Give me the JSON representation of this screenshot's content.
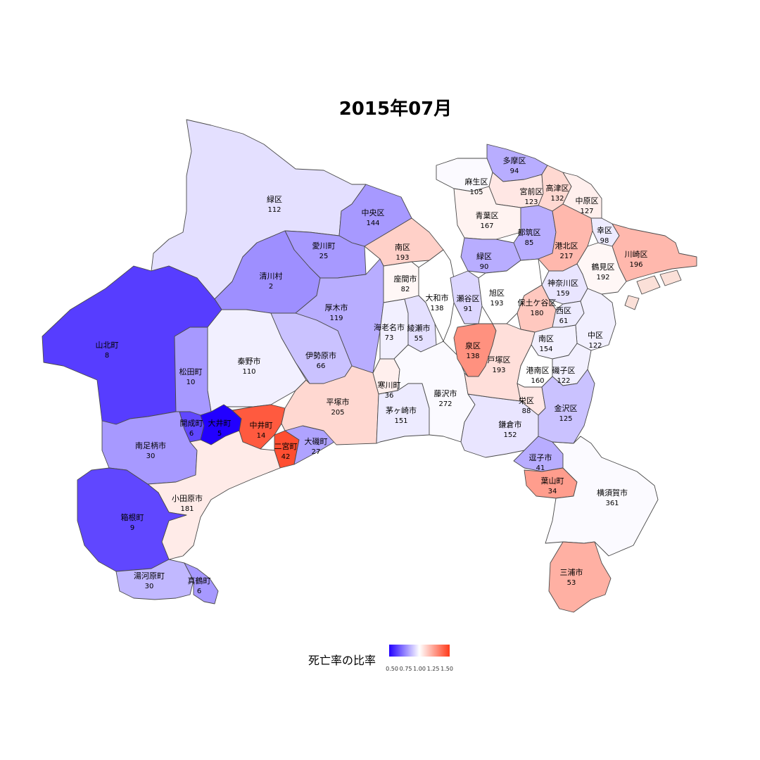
{
  "map": {
    "title": "2015年07月",
    "legend": {
      "title": "死亡率の比率",
      "ticks": [
        "0.50",
        "0.75",
        "1.00",
        "1.25",
        "1.50"
      ],
      "colors": {
        "low": "#2200ff",
        "mid": "#ffffff",
        "high": "#ff3a1a"
      }
    },
    "regions": [
      {
        "id": "midori-sagamihara",
        "name": "緑区",
        "count": "112",
        "ratio": 0.94
      },
      {
        "id": "chuo-sagamihara",
        "name": "中央区",
        "count": "144",
        "ratio": 0.8
      },
      {
        "id": "minami-sagamihara",
        "name": "南区",
        "count": "193",
        "ratio": 1.12
      },
      {
        "id": "aikawa",
        "name": "愛川町",
        "count": "25",
        "ratio": 0.8
      },
      {
        "id": "kiyokawa",
        "name": "清川村",
        "count": "2",
        "ratio": 0.78
      },
      {
        "id": "atsugi",
        "name": "厚木市",
        "count": "119",
        "ratio": 0.84
      },
      {
        "id": "yamakita",
        "name": "山北町",
        "count": "8",
        "ratio": 0.62
      },
      {
        "id": "hadano",
        "name": "秦野市",
        "count": "110",
        "ratio": 0.97
      },
      {
        "id": "isehara",
        "name": "伊勢原市",
        "count": "66",
        "ratio": 0.88
      },
      {
        "id": "matsuda",
        "name": "松田町",
        "count": "10",
        "ratio": 0.8
      },
      {
        "id": "kaisei",
        "name": "開成町",
        "count": "6",
        "ratio": 0.64
      },
      {
        "id": "oi",
        "name": "大井町",
        "count": "5",
        "ratio": 0.5
      },
      {
        "id": "nakai",
        "name": "中井町",
        "count": "14",
        "ratio": 1.42
      },
      {
        "id": "ninomiya",
        "name": "二宮町",
        "count": "42",
        "ratio": 1.45
      },
      {
        "id": "oiso",
        "name": "大磯町",
        "count": "27",
        "ratio": 0.82
      },
      {
        "id": "hiratsuka",
        "name": "平塚市",
        "count": "205",
        "ratio": 1.1
      },
      {
        "id": "minamiashigara",
        "name": "南足柄市",
        "count": "30",
        "ratio": 0.8
      },
      {
        "id": "odawara",
        "name": "小田原市",
        "count": "181",
        "ratio": 1.05
      },
      {
        "id": "hakone",
        "name": "箱根町",
        "count": "9",
        "ratio": 0.64
      },
      {
        "id": "yugawara",
        "name": "湯河原町",
        "count": "30",
        "ratio": 0.86
      },
      {
        "id": "manazuru",
        "name": "真鶴町",
        "count": "6",
        "ratio": 0.8
      },
      {
        "id": "zama",
        "name": "座間市",
        "count": "82",
        "ratio": 1.02
      },
      {
        "id": "yamato",
        "name": "大和市",
        "count": "138",
        "ratio": 1.0
      },
      {
        "id": "ebina",
        "name": "海老名市",
        "count": "73",
        "ratio": 0.97
      },
      {
        "id": "ayase",
        "name": "綾瀬市",
        "count": "55",
        "ratio": 0.94
      },
      {
        "id": "samukawa",
        "name": "寒川町",
        "count": "36",
        "ratio": 1.04
      },
      {
        "id": "chigasaki",
        "name": "茅ヶ崎市",
        "count": "151",
        "ratio": 0.96
      },
      {
        "id": "fujisawa",
        "name": "藤沢市",
        "count": "272",
        "ratio": 0.99
      },
      {
        "id": "kamakura",
        "name": "鎌倉市",
        "count": "152",
        "ratio": 0.95
      },
      {
        "id": "zushi",
        "name": "逗子市",
        "count": "41",
        "ratio": 0.84
      },
      {
        "id": "hayama",
        "name": "葉山町",
        "count": "34",
        "ratio": 1.25
      },
      {
        "id": "yokosuka",
        "name": "横須賀市",
        "count": "361",
        "ratio": 0.99
      },
      {
        "id": "miura",
        "name": "三浦市",
        "count": "53",
        "ratio": 1.2
      },
      {
        "id": "tama",
        "name": "多摩区",
        "count": "94",
        "ratio": 0.84
      },
      {
        "id": "asao",
        "name": "麻生区",
        "count": "105",
        "ratio": 0.99
      },
      {
        "id": "miyamae",
        "name": "宮前区",
        "count": "123",
        "ratio": 1.06
      },
      {
        "id": "takatsu",
        "name": "高津区",
        "count": "132",
        "ratio": 1.1
      },
      {
        "id": "nakahara",
        "name": "中原区",
        "count": "127",
        "ratio": 1.04
      },
      {
        "id": "saiwai",
        "name": "幸区",
        "count": "98",
        "ratio": 0.96
      },
      {
        "id": "kawasaki",
        "name": "川崎区",
        "count": "196",
        "ratio": 1.18
      },
      {
        "id": "aoba",
        "name": "青葉区",
        "count": "167",
        "ratio": 1.03
      },
      {
        "id": "tsuzuki",
        "name": "都筑区",
        "count": "85",
        "ratio": 0.84
      },
      {
        "id": "kohoku",
        "name": "港北区",
        "count": "217",
        "ratio": 1.18
      },
      {
        "id": "tsurumi",
        "name": "鶴見区",
        "count": "192",
        "ratio": 1.02
      },
      {
        "id": "midori-yokohama",
        "name": "緑区",
        "count": "90",
        "ratio": 0.84
      },
      {
        "id": "kanagawa",
        "name": "神奈川区",
        "count": "159",
        "ratio": 0.95
      },
      {
        "id": "seya",
        "name": "瀬谷区",
        "count": "91",
        "ratio": 0.92
      },
      {
        "id": "asahi",
        "name": "旭区",
        "count": "193",
        "ratio": 1.0
      },
      {
        "id": "hodogaya",
        "name": "保土ケ谷区",
        "count": "180",
        "ratio": 1.14
      },
      {
        "id": "nishi",
        "name": "西区",
        "count": "61",
        "ratio": 0.96
      },
      {
        "id": "naka",
        "name": "中区",
        "count": "122",
        "ratio": 0.97
      },
      {
        "id": "minami-yokohama",
        "name": "南区",
        "count": "154",
        "ratio": 0.97
      },
      {
        "id": "izumi",
        "name": "泉区",
        "count": "138",
        "ratio": 1.28
      },
      {
        "id": "totsuka",
        "name": "戸塚区",
        "count": "193",
        "ratio": 1.08
      },
      {
        "id": "konan",
        "name": "港南区",
        "count": "160",
        "ratio": 1.0
      },
      {
        "id": "isogo",
        "name": "磯子区",
        "count": "122",
        "ratio": 0.97
      },
      {
        "id": "sakae",
        "name": "栄区",
        "count": "88",
        "ratio": 1.06
      },
      {
        "id": "kanazawa",
        "name": "金沢区",
        "count": "125",
        "ratio": 0.88
      }
    ]
  }
}
